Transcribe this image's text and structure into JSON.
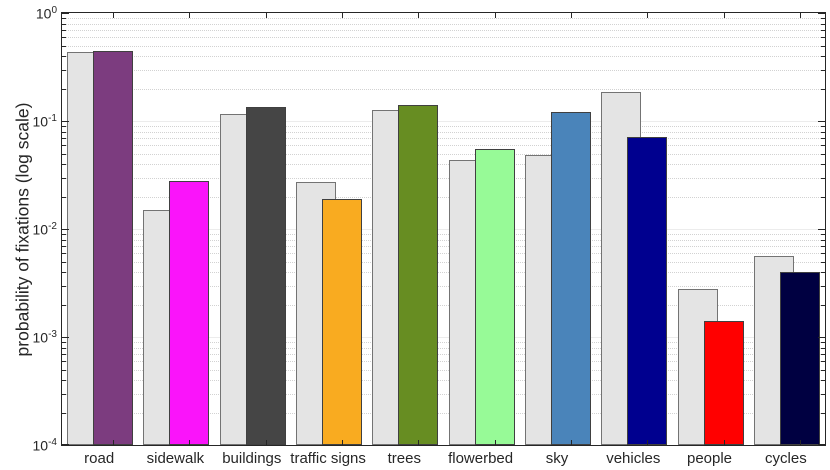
{
  "figure": {
    "ylabel": "probability of fixations (log scale)"
  },
  "chart_data": {
    "type": "bar",
    "title": "",
    "xlabel": "",
    "ylabel": "probability of fixations (log scale)",
    "yscale": "log",
    "ylim": [
      0.0001,
      1.0
    ],
    "ytick_labels": [
      "10^0",
      "10^-1",
      "10^-2",
      "10^-3",
      "10^-4"
    ],
    "ytick_exponents": [
      0,
      -1,
      -2,
      -3,
      -4
    ],
    "grid": "major light solid + minor dotted, horizontal only",
    "legend_position": "none",
    "categories": [
      "road",
      "sidewalk",
      "buildings",
      "traffic signs",
      "trees",
      "flowerbed",
      "sky",
      "vehicles",
      "people",
      "cycles"
    ],
    "series": [
      {
        "name": "left bar (light gray baseline)",
        "color": "#e4e4e4",
        "values": [
          0.44,
          0.015,
          0.115,
          0.027,
          0.127,
          0.044,
          0.049,
          0.185,
          0.0028,
          0.0056
        ]
      },
      {
        "name": "right bar (category color)",
        "values": [
          0.45,
          0.028,
          0.135,
          0.019,
          0.14,
          0.055,
          0.12,
          0.071,
          0.0014,
          0.004
        ],
        "colors": [
          "#7C3C7F",
          "#FA14FA",
          "#454545",
          "#F9AB20",
          "#678D22",
          "#97FA97",
          "#4A84BA",
          "#00008F",
          "#FF0000",
          "#000041"
        ]
      }
    ]
  },
  "style_colors": {
    "axis": "#262626",
    "gray_bar_fill": "#e4e4e4",
    "gray_bar_border": "#737373",
    "colored_bar_border": "#404040",
    "major_grid": "#ececec",
    "minor_grid": "#d2d2d2"
  }
}
